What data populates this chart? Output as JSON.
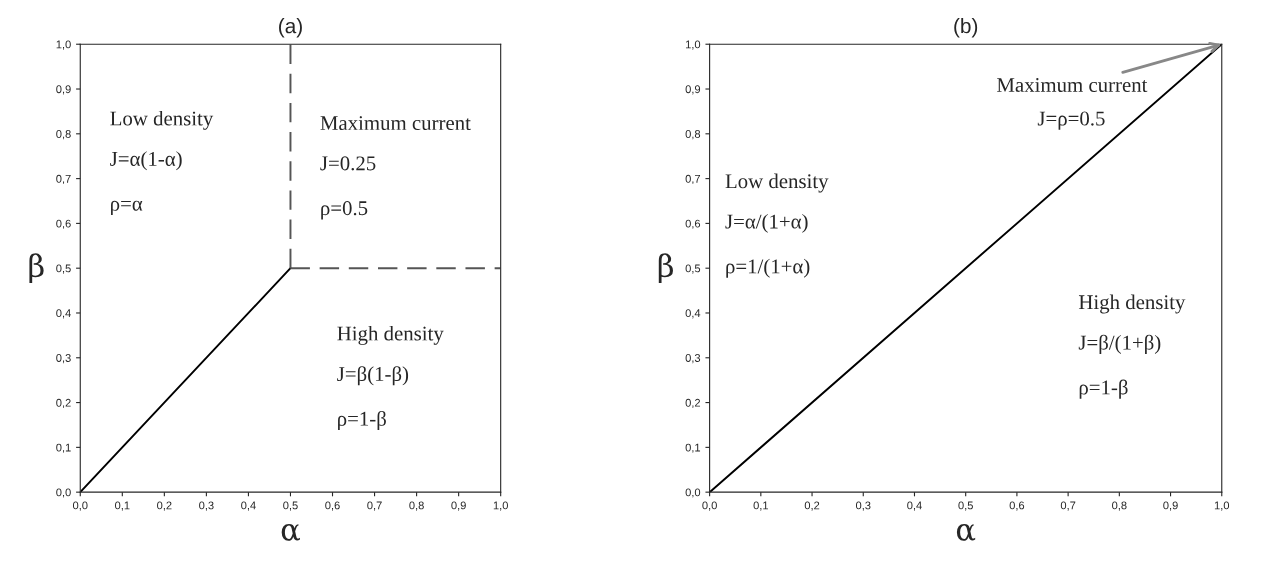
{
  "chart_data": [
    {
      "type": "line",
      "title": "(a)",
      "xlabel": "α",
      "ylabel": "β",
      "xlim": [
        0,
        1
      ],
      "ylim": [
        0,
        1
      ],
      "xticks": [
        {
          "value": 0,
          "label": "0,0"
        },
        {
          "value": 0.1,
          "label": "0,1"
        },
        {
          "value": 0.2,
          "label": "0,2"
        },
        {
          "value": 0.3,
          "label": "0,3"
        },
        {
          "value": 0.4,
          "label": "0,4"
        },
        {
          "value": 0.5,
          "label": "0,5"
        },
        {
          "value": 0.6,
          "label": "0,6"
        },
        {
          "value": 0.7,
          "label": "0,7"
        },
        {
          "value": 0.8,
          "label": "0,8"
        },
        {
          "value": 0.9,
          "label": "0,9"
        },
        {
          "value": 1,
          "label": "1,0"
        }
      ],
      "yticks": [
        {
          "value": 0,
          "label": "0,0"
        },
        {
          "value": 0.1,
          "label": "0,1"
        },
        {
          "value": 0.2,
          "label": "0,2"
        },
        {
          "value": 0.3,
          "label": "0,3"
        },
        {
          "value": 0.4,
          "label": "0,4"
        },
        {
          "value": 0.5,
          "label": "0,5"
        },
        {
          "value": 0.6,
          "label": "0,6"
        },
        {
          "value": 0.7,
          "label": "0,7"
        },
        {
          "value": 0.8,
          "label": "0,8"
        },
        {
          "value": 0.9,
          "label": "0,9"
        },
        {
          "value": 1,
          "label": "1,0"
        }
      ],
      "series": [
        {
          "color": "#000000",
          "line_style": "solid",
          "x": [
            0,
            0.5
          ],
          "values": [
            0,
            0.5
          ]
        },
        {
          "color": "#555555",
          "line_style": "dashed",
          "x": [
            0.5,
            0.5
          ],
          "values": [
            0.5,
            1
          ]
        },
        {
          "color": "#555555",
          "line_style": "dashed",
          "x": [
            0.5,
            1
          ],
          "values": [
            0.5,
            0.5
          ]
        }
      ],
      "annotations": [
        "Low density",
        "J=α(1-α)",
        "ρ=α",
        "Maximum current",
        "J=0.25",
        "ρ=0.5",
        "High density",
        "J=β(1-β)",
        "ρ=1-β"
      ],
      "grid": false,
      "legend": false
    },
    {
      "type": "line",
      "title": "(b)",
      "xlabel": "α",
      "ylabel": "β",
      "xlim": [
        0,
        1
      ],
      "ylim": [
        0,
        1
      ],
      "xticks": [
        {
          "value": 0,
          "label": "0,0"
        },
        {
          "value": 0.1,
          "label": "0,1"
        },
        {
          "value": 0.2,
          "label": "0,2"
        },
        {
          "value": 0.3,
          "label": "0,3"
        },
        {
          "value": 0.4,
          "label": "0,4"
        },
        {
          "value": 0.5,
          "label": "0,5"
        },
        {
          "value": 0.6,
          "label": "0,6"
        },
        {
          "value": 0.7,
          "label": "0,7"
        },
        {
          "value": 0.8,
          "label": "0,8"
        },
        {
          "value": 0.9,
          "label": "0,9"
        },
        {
          "value": 1,
          "label": "1,0"
        }
      ],
      "yticks": [
        {
          "value": 0,
          "label": "0,0"
        },
        {
          "value": 0.1,
          "label": "0,1"
        },
        {
          "value": 0.2,
          "label": "0,2"
        },
        {
          "value": 0.3,
          "label": "0,3"
        },
        {
          "value": 0.4,
          "label": "0,4"
        },
        {
          "value": 0.5,
          "label": "0,5"
        },
        {
          "value": 0.6,
          "label": "0,6"
        },
        {
          "value": 0.7,
          "label": "0,7"
        },
        {
          "value": 0.8,
          "label": "0,8"
        },
        {
          "value": 0.9,
          "label": "0,9"
        },
        {
          "value": 1,
          "label": "1,0"
        }
      ],
      "series": [
        {
          "color": "#000000",
          "line_style": "solid",
          "x": [
            0,
            1
          ],
          "values": [
            0,
            1
          ]
        }
      ],
      "annotations": [
        {
          "text": "Maximum current",
          "x": 1,
          "y": 1
        },
        "J=ρ=0.5",
        "Low density",
        "J=α/(1+α)",
        "ρ=1/(1+α)",
        "High density",
        "J=β/(1+β)",
        "ρ=1-β"
      ],
      "grid": false,
      "legend": false
    }
  ]
}
